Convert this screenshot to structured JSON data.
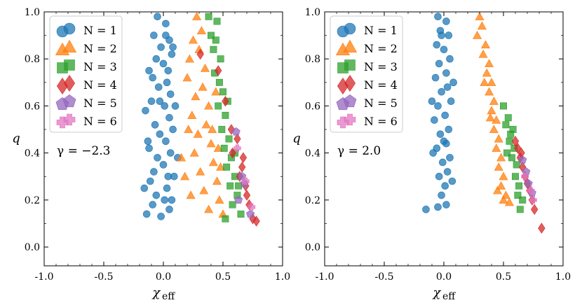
{
  "chart_data": [
    {
      "type": "scatter",
      "panel": "left",
      "annotation": "γ = −2.3",
      "xlabel": "χ",
      "xlabel_sub": "eff",
      "ylabel": "q",
      "xlim": [
        -1.0,
        1.0
      ],
      "ylim": [
        -0.08,
        1.0
      ],
      "xticks": [
        -1.0,
        -0.5,
        0.0,
        0.5,
        1.0
      ],
      "xtick_labels": [
        "-1.0",
        "-0.5",
        "0.0",
        "0.5",
        "1.0"
      ],
      "yticks": [
        0.0,
        0.2,
        0.4,
        0.6,
        0.8,
        1.0
      ],
      "ytick_labels": [
        "0.0",
        "0.2",
        "0.4",
        "0.6",
        "0.8",
        "1.0"
      ],
      "grid": false,
      "legend": "top-left",
      "series": [
        {
          "name": "N = 1",
          "marker": "circle",
          "color": "#1f77b4",
          "points": [
            [
              -0.05,
              0.98
            ],
            [
              0.02,
              0.95
            ],
            [
              -0.08,
              0.9
            ],
            [
              0.05,
              0.88
            ],
            [
              -0.02,
              0.85
            ],
            [
              0.07,
              0.82
            ],
            [
              -0.06,
              0.8
            ],
            [
              0.0,
              0.78
            ],
            [
              0.04,
              0.75
            ],
            [
              -0.09,
              0.72
            ],
            [
              0.03,
              0.7
            ],
            [
              -0.04,
              0.68
            ],
            [
              0.06,
              0.65
            ],
            [
              -0.1,
              0.62
            ],
            [
              0.01,
              0.6
            ],
            [
              -0.15,
              0.58
            ],
            [
              0.05,
              0.55
            ],
            [
              -0.07,
              0.52
            ],
            [
              0.08,
              0.5
            ],
            [
              -0.03,
              0.48
            ],
            [
              0.02,
              0.45
            ],
            [
              -0.12,
              0.42
            ],
            [
              0.06,
              0.4
            ],
            [
              -0.05,
              0.38
            ],
            [
              0.0,
              0.35
            ],
            [
              -0.08,
              0.32
            ],
            [
              0.04,
              0.3
            ],
            [
              -0.11,
              0.28
            ],
            [
              0.03,
              0.25
            ],
            [
              -0.06,
              0.22
            ],
            [
              0.01,
              0.2
            ],
            [
              -0.09,
              0.18
            ],
            [
              0.05,
              0.16
            ],
            [
              -0.14,
              0.14
            ],
            [
              -0.02,
              0.13
            ],
            [
              0.08,
              0.85
            ],
            [
              -0.12,
              0.75
            ],
            [
              0.1,
              0.6
            ],
            [
              -0.13,
              0.45
            ],
            [
              0.09,
              0.3
            ],
            [
              0.12,
              0.38
            ],
            [
              -0.16,
              0.25
            ],
            [
              0.02,
              0.9
            ],
            [
              -0.03,
              0.62
            ],
            [
              0.07,
              0.2
            ]
          ]
        },
        {
          "name": "N = 2",
          "marker": "triangle",
          "color": "#ff7f0e",
          "points": [
            [
              0.28,
              0.98
            ],
            [
              0.32,
              0.92
            ],
            [
              0.25,
              0.88
            ],
            [
              0.3,
              0.84
            ],
            [
              0.22,
              0.8
            ],
            [
              0.35,
              0.76
            ],
            [
              0.2,
              0.72
            ],
            [
              0.33,
              0.68
            ],
            [
              0.27,
              0.64
            ],
            [
              0.38,
              0.6
            ],
            [
              0.24,
              0.56
            ],
            [
              0.36,
              0.52
            ],
            [
              0.29,
              0.48
            ],
            [
              0.4,
              0.44
            ],
            [
              0.26,
              0.4
            ],
            [
              0.42,
              0.36
            ],
            [
              0.31,
              0.32
            ],
            [
              0.45,
              0.28
            ],
            [
              0.34,
              0.24
            ],
            [
              0.47,
              0.2
            ],
            [
              0.38,
              0.16
            ],
            [
              0.5,
              0.14
            ],
            [
              0.15,
              0.38
            ],
            [
              0.18,
              0.3
            ],
            [
              0.44,
              0.66
            ],
            [
              0.41,
              0.5
            ],
            [
              0.48,
              0.34
            ],
            [
              0.21,
              0.5
            ],
            [
              0.23,
              0.22
            ],
            [
              0.46,
              0.42
            ]
          ]
        },
        {
          "name": "N = 3",
          "marker": "square",
          "color": "#2ca02c",
          "points": [
            [
              0.38,
              0.98
            ],
            [
              0.45,
              0.96
            ],
            [
              0.4,
              0.9
            ],
            [
              0.42,
              0.84
            ],
            [
              0.48,
              0.8
            ],
            [
              0.43,
              0.74
            ],
            [
              0.47,
              0.7
            ],
            [
              0.5,
              0.66
            ],
            [
              0.46,
              0.6
            ],
            [
              0.52,
              0.56
            ],
            [
              0.49,
              0.5
            ],
            [
              0.55,
              0.46
            ],
            [
              0.51,
              0.42
            ],
            [
              0.57,
              0.38
            ],
            [
              0.53,
              0.34
            ],
            [
              0.6,
              0.3
            ],
            [
              0.56,
              0.26
            ],
            [
              0.62,
              0.22
            ],
            [
              0.58,
              0.18
            ],
            [
              0.65,
              0.14
            ],
            [
              0.52,
              0.12
            ],
            [
              0.44,
              0.88
            ],
            [
              0.54,
              0.62
            ],
            [
              0.6,
              0.4
            ],
            [
              0.63,
              0.26
            ]
          ]
        },
        {
          "name": "N = 4",
          "marker": "diamond",
          "color": "#d62728",
          "points": [
            [
              0.31,
              0.82
            ],
            [
              0.46,
              0.75
            ],
            [
              0.52,
              0.62
            ],
            [
              0.57,
              0.5
            ],
            [
              0.62,
              0.46
            ],
            [
              0.66,
              0.34
            ],
            [
              0.69,
              0.26
            ],
            [
              0.72,
              0.18
            ],
            [
              0.75,
              0.12
            ],
            [
              0.64,
              0.3
            ],
            [
              0.7,
              0.22
            ],
            [
              0.78,
              0.11
            ],
            [
              0.58,
              0.4
            ],
            [
              0.67,
              0.38
            ]
          ]
        },
        {
          "name": "N = 5",
          "marker": "pentagon",
          "color": "#9467bd",
          "points": [
            [
              0.61,
              0.49
            ],
            [
              0.66,
              0.3
            ],
            [
              0.68,
              0.27
            ],
            [
              0.73,
              0.14
            ],
            [
              0.63,
              0.2
            ]
          ]
        },
        {
          "name": "N = 6",
          "marker": "plus",
          "color": "#e377c2",
          "points": [
            [
              0.62,
              0.42
            ],
            [
              0.69,
              0.28
            ],
            [
              0.74,
              0.17
            ]
          ]
        }
      ]
    },
    {
      "type": "scatter",
      "panel": "right",
      "annotation": "γ = 2.0",
      "xlabel": "χ",
      "xlabel_sub": "eff",
      "ylabel": "q",
      "xlim": [
        -1.0,
        1.0
      ],
      "ylim": [
        -0.08,
        1.0
      ],
      "xticks": [
        -1.0,
        -0.5,
        0.0,
        0.5,
        1.0
      ],
      "xtick_labels": [
        "-1.0",
        "-0.5",
        "0.0",
        "0.5",
        "1.0"
      ],
      "yticks": [
        0.0,
        0.2,
        0.4,
        0.6,
        0.8,
        1.0
      ],
      "ytick_labels": [
        "0.0",
        "0.2",
        "0.4",
        "0.6",
        "0.8",
        "1.0"
      ],
      "grid": false,
      "legend": "top-left",
      "series": [
        {
          "name": "N = 1",
          "marker": "circle",
          "color": "#1f77b4",
          "points": [
            [
              -0.05,
              0.98
            ],
            [
              0.02,
              0.96
            ],
            [
              -0.03,
              0.92
            ],
            [
              0.04,
              0.9
            ],
            [
              -0.06,
              0.86
            ],
            [
              0.0,
              0.84
            ],
            [
              0.05,
              0.8
            ],
            [
              -0.04,
              0.78
            ],
            [
              0.02,
              0.74
            ],
            [
              -0.07,
              0.72
            ],
            [
              0.03,
              0.68
            ],
            [
              -0.02,
              0.66
            ],
            [
              0.06,
              0.62
            ],
            [
              -0.05,
              0.6
            ],
            [
              0.01,
              0.56
            ],
            [
              -0.08,
              0.54
            ],
            [
              0.04,
              0.5
            ],
            [
              -0.03,
              0.48
            ],
            [
              0.02,
              0.44
            ],
            [
              -0.06,
              0.42
            ],
            [
              0.05,
              0.38
            ],
            [
              -0.01,
              0.36
            ],
            [
              0.03,
              0.32
            ],
            [
              -0.04,
              0.3
            ],
            [
              0.01,
              0.26
            ],
            [
              -0.02,
              0.22
            ],
            [
              0.02,
              0.18
            ],
            [
              -0.1,
              0.62
            ],
            [
              0.08,
              0.7
            ],
            [
              -0.09,
              0.4
            ],
            [
              0.07,
              0.28
            ],
            [
              -0.15,
              0.16
            ],
            [
              -0.05,
              0.17
            ],
            [
              -0.02,
              0.9
            ],
            [
              0.0,
              0.45
            ]
          ]
        },
        {
          "name": "N = 2",
          "marker": "triangle",
          "color": "#ff7f0e",
          "points": [
            [
              0.3,
              0.98
            ],
            [
              0.32,
              0.94
            ],
            [
              0.28,
              0.9
            ],
            [
              0.35,
              0.86
            ],
            [
              0.33,
              0.82
            ],
            [
              0.38,
              0.78
            ],
            [
              0.36,
              0.74
            ],
            [
              0.4,
              0.7
            ],
            [
              0.38,
              0.66
            ],
            [
              0.42,
              0.62
            ],
            [
              0.4,
              0.58
            ],
            [
              0.44,
              0.54
            ],
            [
              0.42,
              0.5
            ],
            [
              0.46,
              0.46
            ],
            [
              0.44,
              0.42
            ],
            [
              0.48,
              0.38
            ],
            [
              0.46,
              0.34
            ],
            [
              0.5,
              0.3
            ],
            [
              0.48,
              0.26
            ],
            [
              0.52,
              0.22
            ],
            [
              0.5,
              0.2
            ],
            [
              0.45,
              0.24
            ],
            [
              0.34,
              0.7
            ],
            [
              0.39,
              0.55
            ],
            [
              0.55,
              0.19
            ]
          ]
        },
        {
          "name": "N = 3",
          "marker": "square",
          "color": "#2ca02c",
          "points": [
            [
              0.5,
              0.6
            ],
            [
              0.54,
              0.55
            ],
            [
              0.52,
              0.52
            ],
            [
              0.56,
              0.48
            ],
            [
              0.55,
              0.45
            ],
            [
              0.59,
              0.42
            ],
            [
              0.57,
              0.38
            ],
            [
              0.61,
              0.35
            ],
            [
              0.6,
              0.3
            ],
            [
              0.63,
              0.26
            ],
            [
              0.62,
              0.22
            ],
            [
              0.66,
              0.2
            ],
            [
              0.64,
              0.16
            ],
            [
              0.58,
              0.5
            ],
            [
              0.53,
              0.4
            ]
          ]
        },
        {
          "name": "N = 4",
          "marker": "diamond",
          "color": "#d62728",
          "points": [
            [
              0.6,
              0.45
            ],
            [
              0.62,
              0.42
            ],
            [
              0.64,
              0.38
            ],
            [
              0.66,
              0.34
            ],
            [
              0.68,
              0.3
            ],
            [
              0.7,
              0.27
            ],
            [
              0.72,
              0.24
            ],
            [
              0.74,
              0.2
            ],
            [
              0.76,
              0.16
            ],
            [
              0.82,
              0.08
            ],
            [
              0.65,
              0.4
            ]
          ]
        },
        {
          "name": "N = 5",
          "marker": "pentagon",
          "color": "#9467bd",
          "points": [
            [
              0.66,
              0.37
            ],
            [
              0.71,
              0.27
            ],
            [
              0.74,
              0.23
            ],
            [
              0.69,
              0.32
            ]
          ]
        },
        {
          "name": "N = 6",
          "marker": "plus",
          "color": "#e377c2",
          "points": [
            [
              0.68,
              0.3
            ],
            [
              0.73,
              0.24
            ],
            [
              0.75,
              0.2
            ]
          ]
        }
      ]
    }
  ]
}
